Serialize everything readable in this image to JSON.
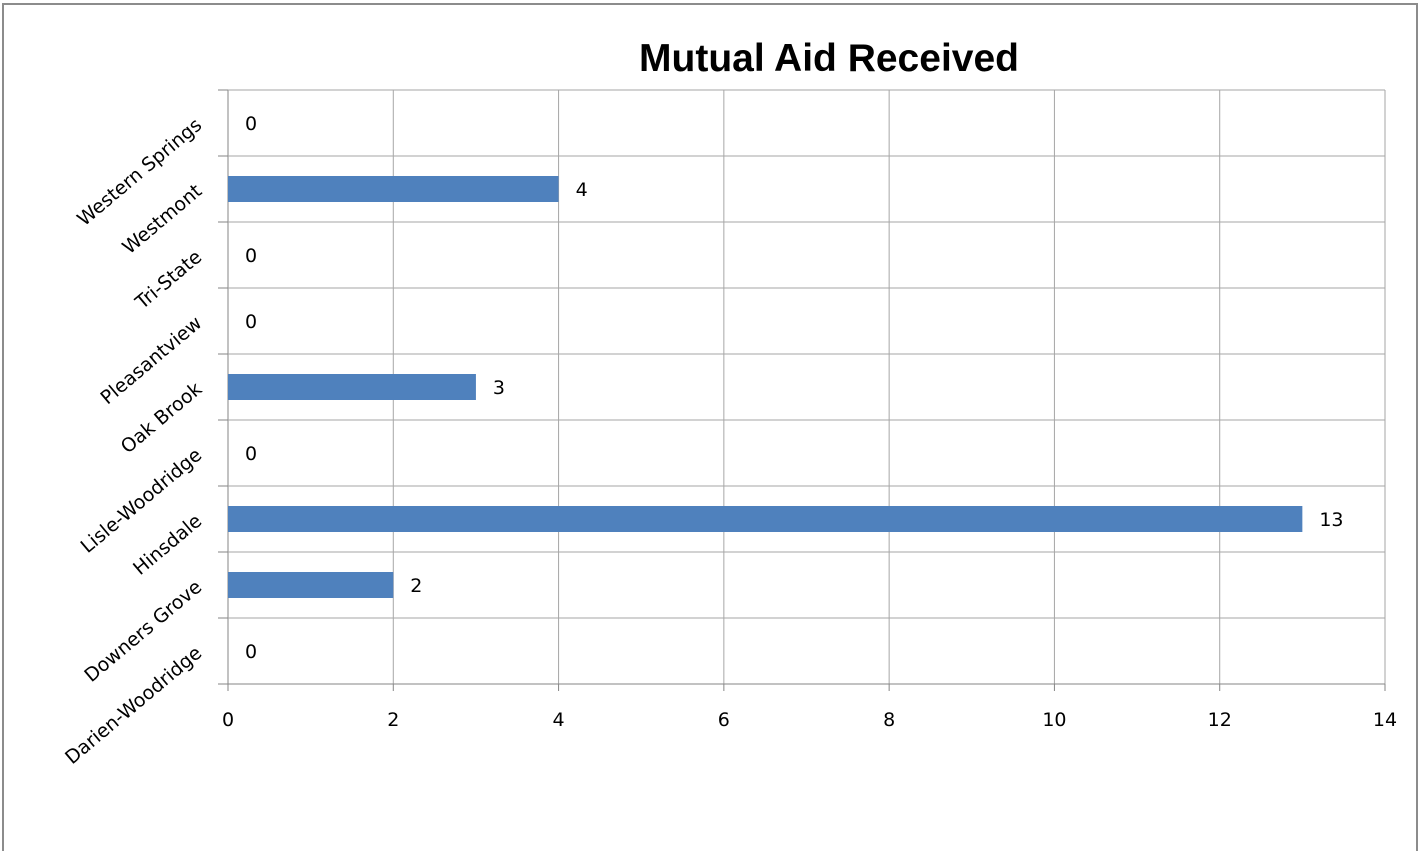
{
  "chart_data": {
    "type": "bar",
    "orientation": "horizontal",
    "title": "Mutual Aid Received",
    "categories": [
      "Darien-Woodridge",
      "Downers Grove",
      "Hinsdale",
      "Lisle-Woodridge",
      "Oak Brook",
      "Pleasantview",
      "Tri-State",
      "Westmont",
      "Western Springs"
    ],
    "values": [
      0,
      2,
      13,
      0,
      3,
      0,
      0,
      4,
      0
    ],
    "data_labels": [
      "0",
      "2",
      "13",
      "0",
      "3",
      "0",
      "0",
      "4",
      "0"
    ],
    "xlim": [
      0,
      14
    ],
    "x_ticks": [
      "0",
      "2",
      "4",
      "6",
      "8",
      "10",
      "12",
      "14"
    ],
    "grid": true,
    "legend": "none",
    "bar_color": "#4f81bd",
    "grid_color": "#a6a6a6",
    "axis_color": "#868686"
  }
}
